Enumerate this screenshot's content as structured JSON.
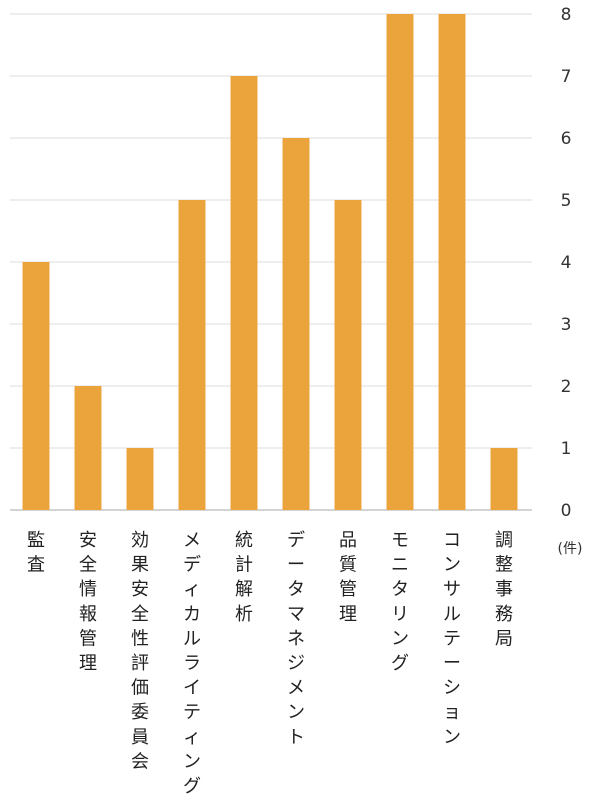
{
  "chart_data": {
    "type": "bar",
    "categories": [
      "監査",
      "安全情報管理",
      "効果安全性評価委員会",
      "メディカルライティング",
      "統計解析",
      "データマネジメント",
      "品質管理",
      "モニタリング",
      "コンサルテーション",
      "調整事務局"
    ],
    "values": [
      4,
      2,
      1,
      5,
      7,
      6,
      5,
      8,
      8,
      1
    ],
    "yticks": [
      "0",
      "1",
      "2",
      "3",
      "4",
      "5",
      "6",
      "7",
      "8"
    ],
    "ylim": [
      0,
      8
    ],
    "yunit": "(件)",
    "grid": true,
    "y_axis_position": "right",
    "bar_color": "#EBA43C",
    "grid_color": "#DDDDDD",
    "baseline_color": "#BBBBBB"
  }
}
